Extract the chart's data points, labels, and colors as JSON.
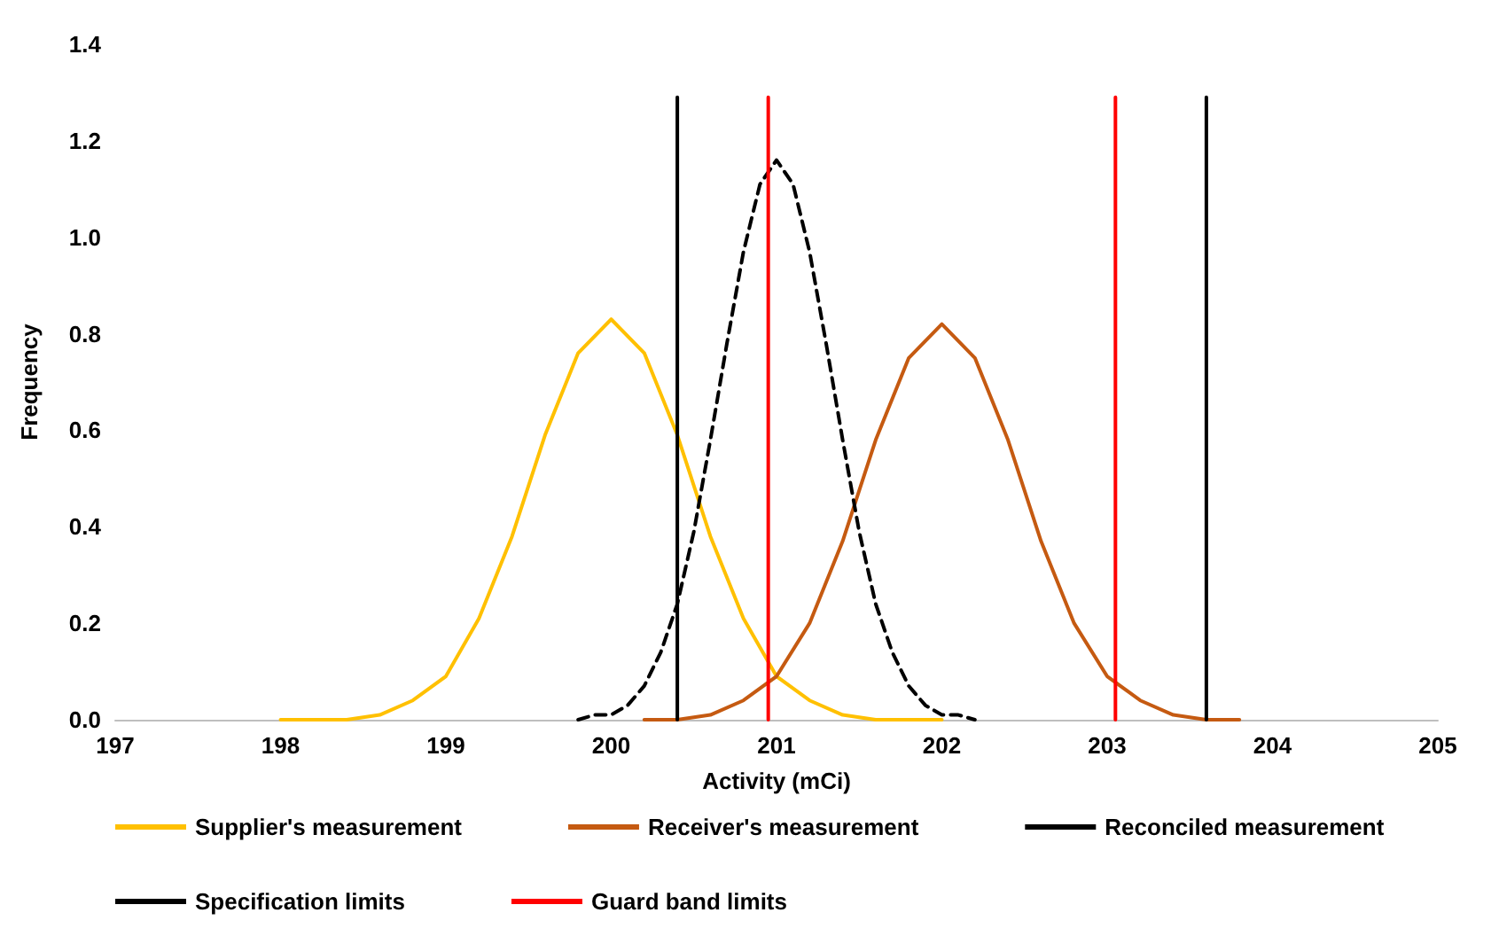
{
  "chart_data": {
    "type": "line",
    "xlabel": "Activity (mCi)",
    "ylabel": "Frequency",
    "xlim": [
      197,
      205
    ],
    "xticks": [
      197,
      198,
      199,
      200,
      201,
      202,
      203,
      204,
      205
    ],
    "ylim": [
      0,
      1.4
    ],
    "yticks": [
      {
        "value": 0,
        "label": "0.0"
      },
      0.2,
      0.4,
      0.6,
      0.8,
      {
        "value": 1,
        "label": "1.0"
      },
      1.2,
      1.4
    ],
    "grid": false,
    "legend": "bottom",
    "marker": "none",
    "series": [
      {
        "name": "Supplier's measurement",
        "color": "#ffc000",
        "line_style": "solid",
        "x": [
          198,
          198.2,
          198.4,
          198.6,
          198.8,
          199,
          199.2,
          199.4,
          199.6,
          199.8,
          200,
          200.2,
          200.4,
          200.6,
          200.8,
          201,
          201.2,
          201.4,
          201.6,
          201.8,
          202
        ],
        "values": [
          0,
          0,
          0,
          0.01,
          0.04,
          0.09,
          0.21,
          0.38,
          0.59,
          0.76,
          0.83,
          0.76,
          0.59,
          0.38,
          0.21,
          0.09,
          0.04,
          0.01,
          0,
          0,
          0
        ]
      },
      {
        "name": "Receiver's measurement",
        "color": "#c55a11",
        "line_style": "solid",
        "x": [
          200.2,
          200.4,
          200.6,
          200.8,
          201,
          201.2,
          201.4,
          201.6,
          201.8,
          202,
          202.2,
          202.4,
          202.6,
          202.8,
          203,
          203.2,
          203.4,
          203.6,
          203.8
        ],
        "values": [
          0,
          0,
          0.01,
          0.04,
          0.09,
          0.2,
          0.37,
          0.58,
          0.75,
          0.82,
          0.75,
          0.58,
          0.37,
          0.2,
          0.09,
          0.04,
          0.01,
          0,
          0
        ]
      },
      {
        "name": "Reconciled measurement",
        "color": "#000000",
        "line_style": "dashed",
        "x": [
          199.8,
          199.9,
          200,
          200.1,
          200.2,
          200.3,
          200.4,
          200.5,
          200.6,
          200.7,
          200.8,
          200.9,
          201,
          201.1,
          201.2,
          201.3,
          201.4,
          201.5,
          201.6,
          201.7,
          201.8,
          201.9,
          202,
          202.1,
          202.2
        ],
        "values": [
          0,
          0.01,
          0.01,
          0.03,
          0.07,
          0.14,
          0.24,
          0.39,
          0.58,
          0.78,
          0.97,
          1.11,
          1.16,
          1.11,
          0.97,
          0.78,
          0.58,
          0.39,
          0.24,
          0.14,
          0.07,
          0.03,
          0.01,
          0.01,
          0
        ]
      },
      {
        "name": "Specification limits",
        "color": "#000000",
        "line_style": "solid",
        "x": [
          200.4,
          200.4,
          202,
          203.6,
          203.6
        ],
        "values": [
          0,
          1.29,
          null,
          1.29,
          0
        ]
      },
      {
        "name": "Guard band limits",
        "color": "#ff0000",
        "line_style": "solid",
        "x": [
          200.95,
          200.95,
          202,
          203.05,
          203.05
        ],
        "values": [
          0,
          1.29,
          null,
          1.29,
          0
        ]
      }
    ]
  }
}
